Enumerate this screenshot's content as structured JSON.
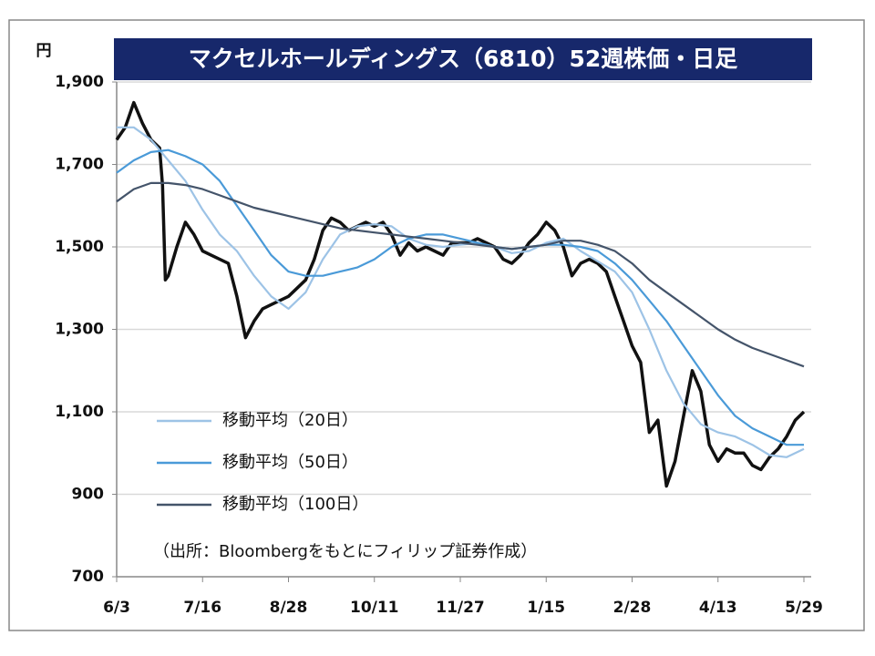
{
  "chart_data": {
    "type": "line",
    "title": "マクセルホールディングス（6810）52週株価・日足",
    "y_unit": "円",
    "annotation": "（出所：Bloombergをもとにフィリップ証券作成）",
    "xlim": [
      0,
      240
    ],
    "xticks": [
      {
        "value": 0,
        "label": "6/3"
      },
      {
        "value": 30,
        "label": "7/16"
      },
      {
        "value": 60,
        "label": "8/28"
      },
      {
        "value": 90,
        "label": "10/11"
      },
      {
        "value": 120,
        "label": "11/27"
      },
      {
        "value": 150,
        "label": "1/15"
      },
      {
        "value": 180,
        "label": "2/28"
      },
      {
        "value": 210,
        "label": "4/13"
      },
      {
        "value": 240,
        "label": "5/29"
      }
    ],
    "ylim": [
      700,
      1900
    ],
    "yticks": [
      700,
      900,
      {
        "value": 1100,
        "label": "1,100"
      },
      {
        "value": 1300,
        "label": "1,300"
      },
      {
        "value": 1500,
        "label": "1,500"
      },
      {
        "value": 1700,
        "label": "1,700"
      },
      {
        "value": 1900,
        "label": "1,900"
      }
    ],
    "grid": true,
    "series": [
      {
        "color": "#111111",
        "x": [
          0,
          3,
          6,
          9,
          12,
          15,
          16,
          17,
          18,
          21,
          24,
          27,
          30,
          33,
          36,
          39,
          42,
          45,
          48,
          51,
          54,
          57,
          60,
          63,
          66,
          69,
          72,
          75,
          78,
          81,
          84,
          87,
          90,
          93,
          96,
          99,
          102,
          105,
          108,
          111,
          114,
          117,
          120,
          123,
          126,
          129,
          132,
          135,
          138,
          141,
          144,
          147,
          150,
          153,
          156,
          159,
          162,
          165,
          168,
          171,
          174,
          177,
          180,
          183,
          186,
          189,
          192,
          195,
          198,
          201,
          204,
          207,
          210,
          213,
          216,
          219,
          222,
          225,
          228,
          231,
          234,
          237,
          240
        ],
        "values": [
          1760,
          1790,
          1850,
          1800,
          1760,
          1740,
          1650,
          1420,
          1430,
          1500,
          1560,
          1530,
          1490,
          1480,
          1470,
          1460,
          1380,
          1280,
          1320,
          1350,
          1360,
          1370,
          1380,
          1400,
          1420,
          1470,
          1540,
          1570,
          1560,
          1540,
          1550,
          1560,
          1550,
          1560,
          1530,
          1480,
          1510,
          1490,
          1500,
          1490,
          1480,
          1510,
          1510,
          1510,
          1520,
          1510,
          1500,
          1470,
          1460,
          1480,
          1510,
          1530,
          1560,
          1540,
          1500,
          1430,
          1460,
          1470,
          1460,
          1440,
          1380,
          1320,
          1260,
          1220,
          1050,
          1080,
          920,
          980,
          1090,
          1200,
          1150,
          1020,
          980,
          1010,
          1000,
          1000,
          970,
          960,
          990,
          1010,
          1040,
          1080,
          1100
        ]
      },
      {
        "name": "移動平均（20日）",
        "color": "#9dc3e6",
        "x": [
          0,
          6,
          12,
          18,
          24,
          30,
          36,
          42,
          48,
          54,
          60,
          66,
          72,
          78,
          84,
          90,
          96,
          102,
          108,
          114,
          120,
          126,
          132,
          138,
          144,
          150,
          156,
          162,
          168,
          174,
          180,
          186,
          192,
          198,
          204,
          210,
          216,
          222,
          228,
          234,
          240
        ],
        "values": [
          1790,
          1790,
          1760,
          1710,
          1660,
          1590,
          1530,
          1490,
          1430,
          1380,
          1350,
          1390,
          1470,
          1530,
          1550,
          1555,
          1550,
          1520,
          1505,
          1500,
          1505,
          1510,
          1500,
          1485,
          1490,
          1510,
          1520,
          1490,
          1465,
          1440,
          1390,
          1300,
          1200,
          1120,
          1070,
          1050,
          1040,
          1020,
          995,
          990,
          1010
        ]
      },
      {
        "name": "移動平均（50日）",
        "color": "#4a9ad8",
        "x": [
          0,
          6,
          12,
          18,
          24,
          30,
          36,
          42,
          48,
          54,
          60,
          66,
          72,
          78,
          84,
          90,
          96,
          102,
          108,
          114,
          120,
          126,
          132,
          138,
          144,
          150,
          156,
          162,
          168,
          174,
          180,
          186,
          192,
          198,
          204,
          210,
          216,
          222,
          228,
          234,
          240
        ],
        "values": [
          1680,
          1710,
          1730,
          1735,
          1720,
          1700,
          1660,
          1600,
          1540,
          1480,
          1440,
          1430,
          1430,
          1440,
          1450,
          1470,
          1500,
          1520,
          1530,
          1530,
          1520,
          1510,
          1500,
          1495,
          1500,
          1505,
          1505,
          1500,
          1490,
          1460,
          1420,
          1370,
          1320,
          1260,
          1200,
          1140,
          1090,
          1060,
          1040,
          1020,
          1020
        ]
      },
      {
        "name": "移動平均（100日）",
        "color": "#44546a",
        "x": [
          0,
          6,
          12,
          18,
          24,
          30,
          36,
          42,
          48,
          54,
          60,
          66,
          72,
          78,
          84,
          90,
          96,
          102,
          108,
          114,
          120,
          126,
          132,
          138,
          144,
          150,
          156,
          162,
          168,
          174,
          180,
          186,
          192,
          198,
          204,
          210,
          216,
          222,
          228,
          234,
          240
        ],
        "values": [
          1610,
          1640,
          1655,
          1655,
          1650,
          1640,
          1625,
          1610,
          1595,
          1585,
          1575,
          1565,
          1555,
          1545,
          1540,
          1535,
          1530,
          1525,
          1520,
          1515,
          1510,
          1505,
          1500,
          1495,
          1500,
          1505,
          1515,
          1515,
          1505,
          1490,
          1460,
          1420,
          1390,
          1360,
          1330,
          1300,
          1275,
          1255,
          1240,
          1225,
          1210
        ]
      }
    ]
  }
}
